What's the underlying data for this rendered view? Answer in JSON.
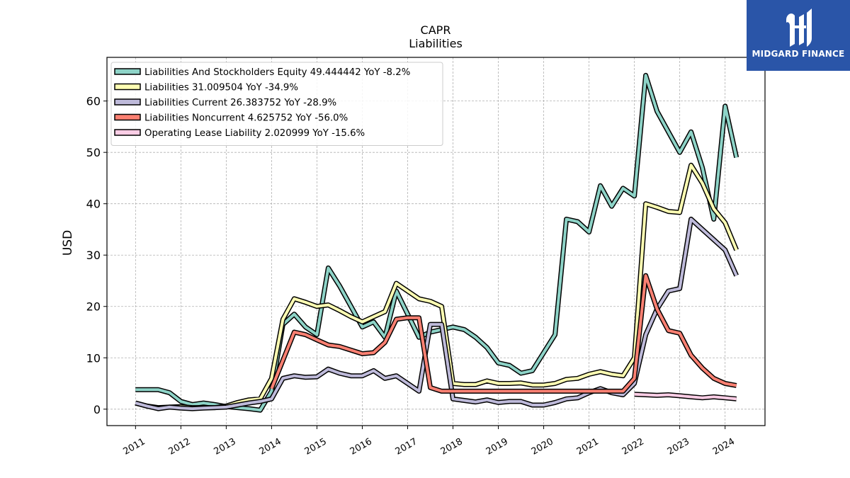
{
  "logo": {
    "text": "MIDGARD FINANCE"
  },
  "chart_data": {
    "type": "line",
    "title": "CAPR",
    "subtitle": "Liabilities",
    "xlabel": "",
    "ylabel": "USD",
    "xlim": [
      2010.37,
      2024.88
    ],
    "ylim": [
      -3.2,
      68.5
    ],
    "yticks": [
      0,
      10,
      20,
      30,
      40,
      50,
      60
    ],
    "xticks": [
      "2011",
      "2012",
      "2013",
      "2014",
      "2015",
      "2016",
      "2017",
      "2018",
      "2019",
      "2020",
      "2021",
      "2022",
      "2023",
      "2024"
    ],
    "grid": true,
    "legend_position": "top-left",
    "series": [
      {
        "name": "Liabilities And Stockholders Equity",
        "legend": "Liabilities And Stockholders Equity  49.444442 YoY -8.2%",
        "color": "#8dd3c7",
        "x": [
          2011.0,
          2011.25,
          2011.5,
          2011.75,
          2012.0,
          2012.25,
          2012.5,
          2012.75,
          2013.0,
          2013.25,
          2013.5,
          2013.75,
          2014.0,
          2014.25,
          2014.5,
          2014.75,
          2015.0,
          2015.25,
          2015.5,
          2015.75,
          2016.0,
          2016.25,
          2016.5,
          2016.75,
          2017.0,
          2017.25,
          2017.5,
          2017.75,
          2018.0,
          2018.25,
          2018.5,
          2018.75,
          2019.0,
          2019.25,
          2019.5,
          2019.75,
          2020.0,
          2020.25,
          2020.5,
          2020.75,
          2021.0,
          2021.25,
          2021.5,
          2021.75,
          2022.0,
          2022.25,
          2022.5,
          2022.75,
          2023.0,
          2023.25,
          2023.5,
          2023.75,
          2024.0,
          2024.25
        ],
        "values": [
          3.8,
          3.8,
          3.8,
          3.2,
          1.5,
          0.9,
          1.2,
          0.9,
          0.5,
          0.3,
          0.1,
          -0.2,
          3.5,
          16.5,
          18.5,
          16.0,
          14.5,
          27.5,
          24.0,
          20.0,
          16.0,
          17.0,
          14.0,
          23.0,
          18.5,
          14.0,
          15.0,
          15.5,
          16.0,
          15.5,
          14.0,
          12.0,
          9.0,
          8.5,
          7.0,
          7.5,
          11.0,
          14.5,
          37.0,
          36.5,
          34.5,
          43.5,
          39.5,
          43.0,
          41.5,
          65.0,
          58.0,
          54.0,
          50.0,
          54.0,
          47.0,
          37.0,
          59.0,
          49.0
        ]
      },
      {
        "name": "Liabilities",
        "legend": "Liabilities  31.009504 YoY -34.9%",
        "color": "#ffffb3",
        "x": [
          2011.0,
          2011.25,
          2011.5,
          2011.75,
          2012.0,
          2012.25,
          2012.5,
          2012.75,
          2013.0,
          2013.25,
          2013.5,
          2013.75,
          2014.0,
          2014.25,
          2014.5,
          2014.75,
          2015.0,
          2015.25,
          2015.5,
          2015.75,
          2016.0,
          2016.25,
          2016.5,
          2016.75,
          2017.0,
          2017.25,
          2017.5,
          2017.75,
          2018.0,
          2018.25,
          2018.5,
          2018.75,
          2019.0,
          2019.25,
          2019.5,
          2019.75,
          2020.0,
          2020.25,
          2020.5,
          2020.75,
          2021.0,
          2021.25,
          2021.5,
          2021.75,
          2022.0,
          2022.25,
          2022.5,
          2022.75,
          2023.0,
          2023.25,
          2023.5,
          2023.75,
          2024.0,
          2024.25
        ],
        "values": [
          1.2,
          0.6,
          0.3,
          0.4,
          0.5,
          0.3,
          0.3,
          0.3,
          0.6,
          1.3,
          1.8,
          2.0,
          6.0,
          17.5,
          21.5,
          20.8,
          20.0,
          20.3,
          19.2,
          18.0,
          17.0,
          18.0,
          19.0,
          24.5,
          23.0,
          21.5,
          21.0,
          20.0,
          5.0,
          4.8,
          4.8,
          5.5,
          5.0,
          5.0,
          5.1,
          4.7,
          4.7,
          5.0,
          5.8,
          6.0,
          6.8,
          7.3,
          6.8,
          6.5,
          10.0,
          40.0,
          39.3,
          38.5,
          38.3,
          47.5,
          44.0,
          39.0,
          36.3,
          31.0
        ]
      },
      {
        "name": "Liabilities Current",
        "legend": "Liabilities Current  26.383752 YoY -28.9%",
        "color": "#bebada",
        "x": [
          2011.0,
          2011.25,
          2011.5,
          2011.75,
          2012.0,
          2012.25,
          2012.5,
          2012.75,
          2013.0,
          2013.25,
          2013.5,
          2013.75,
          2014.0,
          2014.25,
          2014.5,
          2014.75,
          2015.0,
          2015.25,
          2015.5,
          2015.75,
          2016.0,
          2016.25,
          2016.5,
          2016.75,
          2017.0,
          2017.25,
          2017.5,
          2017.75,
          2018.0,
          2018.25,
          2018.5,
          2018.75,
          2019.0,
          2019.25,
          2019.5,
          2019.75,
          2020.0,
          2020.25,
          2020.5,
          2020.75,
          2021.0,
          2021.25,
          2021.5,
          2021.75,
          2022.0,
          2022.25,
          2022.5,
          2022.75,
          2023.0,
          2023.25,
          2023.5,
          2023.75,
          2024.0,
          2024.25
        ],
        "values": [
          1.2,
          0.6,
          0.1,
          0.4,
          0.2,
          0.1,
          0.2,
          0.3,
          0.4,
          0.8,
          1.2,
          1.5,
          2.0,
          6.0,
          6.5,
          6.2,
          6.3,
          7.8,
          7.0,
          6.5,
          6.5,
          7.5,
          6.0,
          6.5,
          5.0,
          3.5,
          16.5,
          16.5,
          2.0,
          1.7,
          1.4,
          1.8,
          1.3,
          1.5,
          1.5,
          0.8,
          0.8,
          1.3,
          2.0,
          2.2,
          3.2,
          4.0,
          3.2,
          2.8,
          5.0,
          14.5,
          19.5,
          23.0,
          23.5,
          37.0,
          35.0,
          33.0,
          31.0,
          26.0
        ]
      },
      {
        "name": "Liabilities Noncurrent",
        "legend": "Liabilities Noncurrent  4.625752 YoY -56.0%",
        "color": "#fb8072",
        "x": [
          2014.0,
          2014.25,
          2014.5,
          2014.75,
          2015.0,
          2015.25,
          2015.5,
          2015.75,
          2016.0,
          2016.25,
          2016.5,
          2016.75,
          2017.0,
          2017.25,
          2017.5,
          2017.75,
          2018.0,
          2018.25,
          2018.5,
          2018.75,
          2019.0,
          2019.25,
          2019.5,
          2019.75,
          2020.0,
          2020.25,
          2020.5,
          2020.75,
          2021.0,
          2021.25,
          2021.5,
          2021.75,
          2022.0,
          2022.25,
          2022.5,
          2022.75,
          2023.0,
          2023.25,
          2023.5,
          2023.75,
          2024.0,
          2024.25
        ],
        "values": [
          4.0,
          9.5,
          15.0,
          14.5,
          13.5,
          12.5,
          12.2,
          11.5,
          10.8,
          11.0,
          13.0,
          17.5,
          17.8,
          17.8,
          4.2,
          3.5,
          3.5,
          3.5,
          3.5,
          3.5,
          3.5,
          3.5,
          3.5,
          3.5,
          3.5,
          3.5,
          3.5,
          3.5,
          3.5,
          3.5,
          3.5,
          3.5,
          6.0,
          26.0,
          19.5,
          15.3,
          14.8,
          10.5,
          8.0,
          6.0,
          5.0,
          4.6
        ]
      },
      {
        "name": "Operating Lease Liability",
        "legend": "Operating Lease Liability  2.020999 YoY -15.6%",
        "color": "#fccde5",
        "x": [
          2022.0,
          2022.25,
          2022.5,
          2022.75,
          2023.0,
          2023.25,
          2023.5,
          2023.75,
          2024.0,
          2024.25
        ],
        "values": [
          2.9,
          2.8,
          2.7,
          2.8,
          2.6,
          2.4,
          2.2,
          2.4,
          2.2,
          2.0
        ]
      }
    ]
  }
}
